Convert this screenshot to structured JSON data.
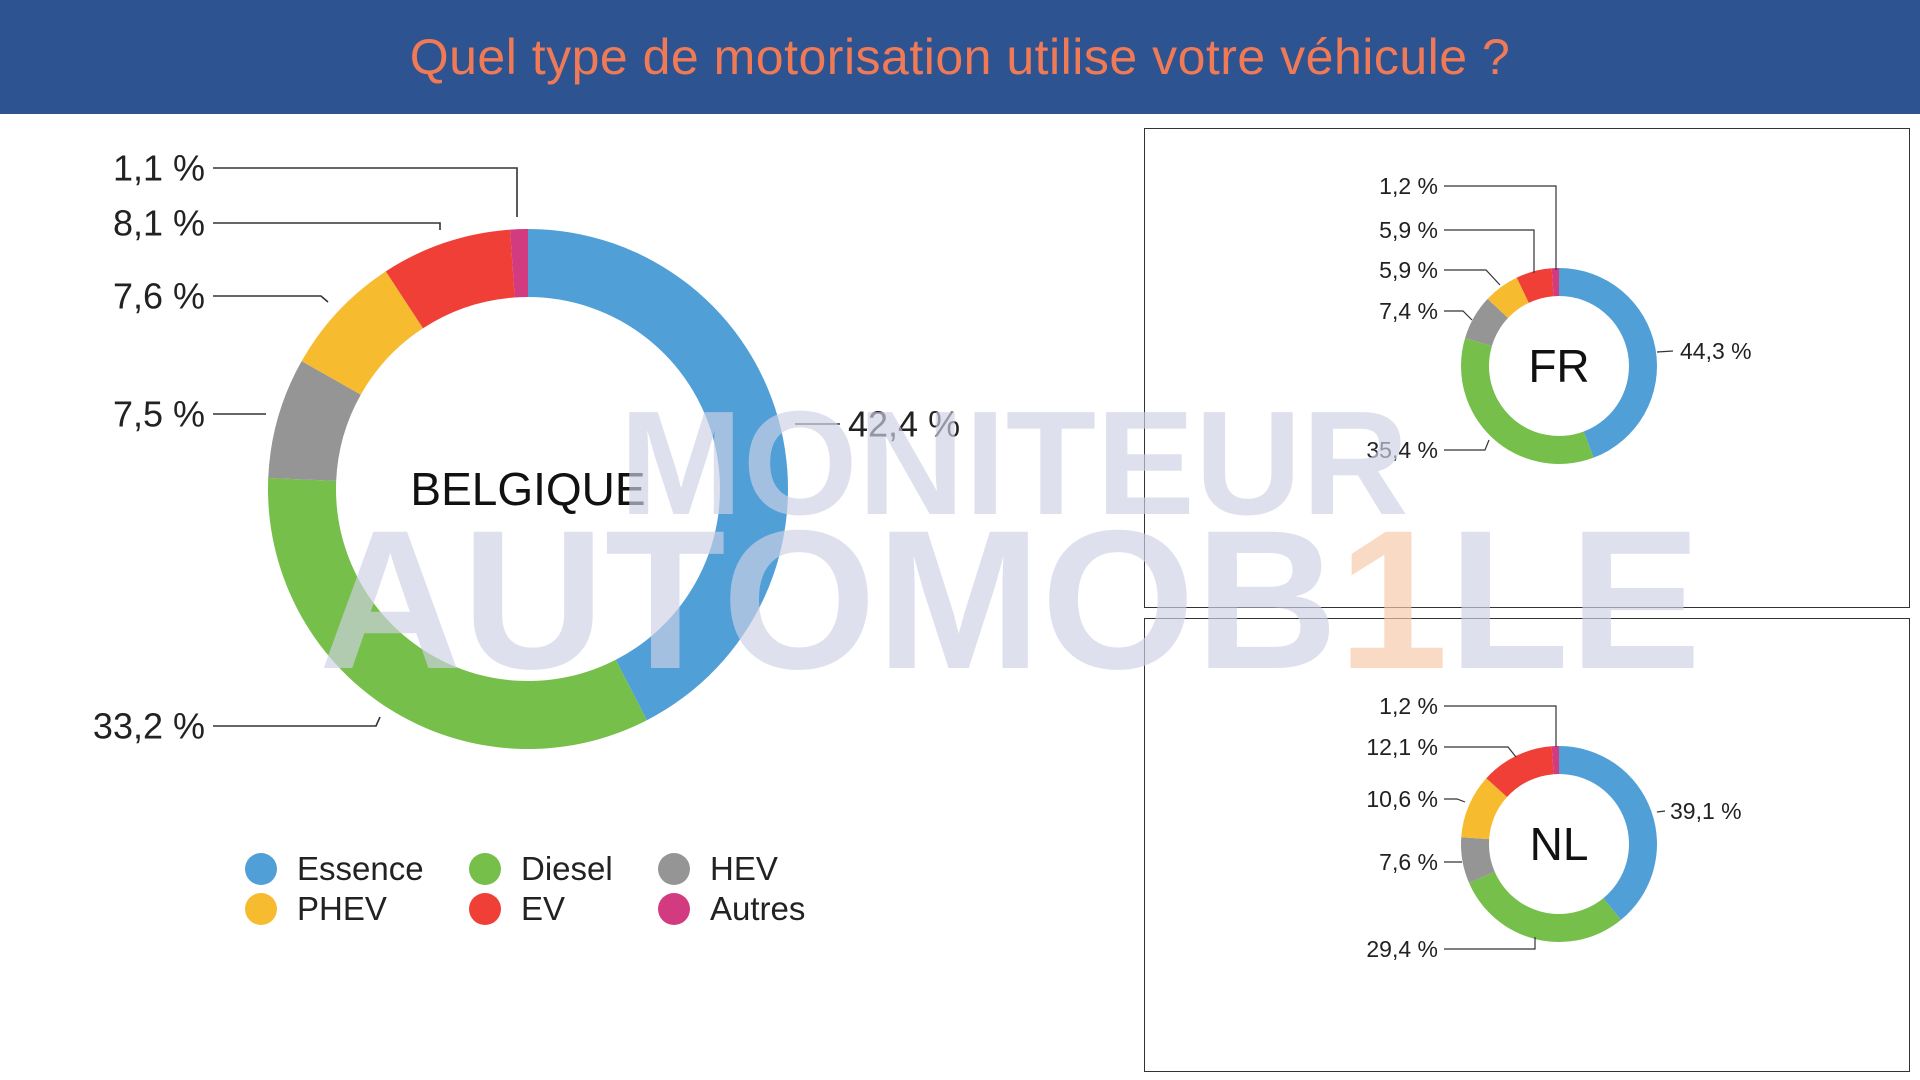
{
  "header": {
    "title": "Quel type de motorisation utilise votre véhicule ?",
    "background": "#2e5391",
    "title_color": "#f07a55"
  },
  "watermark": {
    "line1": "MONITEUR",
    "line2_part1": "AUTOMOB",
    "line2_highlight": "1",
    "line2_part2": "LE"
  },
  "colors": {
    "Essence": "#509fd7",
    "Diesel": "#76bf4a",
    "HEV": "#959595",
    "PHEV": "#f7bb30",
    "EV": "#ef3f36",
    "Autres": "#d33b80"
  },
  "legend": [
    {
      "label": "Essence",
      "color": "#509fd7"
    },
    {
      "label": "Diesel",
      "color": "#76bf4a"
    },
    {
      "label": "HEV",
      "color": "#959595"
    },
    {
      "label": "PHEV",
      "color": "#f7bb30"
    },
    {
      "label": "EV",
      "color": "#ef3f36"
    },
    {
      "label": "Autres",
      "color": "#d33b80"
    }
  ],
  "chart_data": [
    {
      "type": "pie",
      "title": "BELGIQUE",
      "categories": [
        "Essence",
        "Diesel",
        "HEV",
        "PHEV",
        "EV",
        "Autres"
      ],
      "values": [
        42.4,
        33.2,
        7.5,
        7.6,
        8.1,
        1.1
      ],
      "labels": [
        "42,4 %",
        "33,2 %",
        "7,5 %",
        "7,6 %",
        "8,1 %",
        "1,1 %"
      ]
    },
    {
      "type": "pie",
      "title": "FR",
      "categories": [
        "Essence",
        "Diesel",
        "HEV",
        "PHEV",
        "EV",
        "Autres"
      ],
      "values": [
        44.3,
        35.4,
        7.4,
        5.9,
        5.9,
        1.2
      ],
      "labels": [
        "44,3 %",
        "35,4 %",
        "7,4 %",
        "5,9 %",
        "5,9 %",
        "1,2 %"
      ]
    },
    {
      "type": "pie",
      "title": "NL",
      "categories": [
        "Essence",
        "Diesel",
        "HEV",
        "PHEV",
        "EV",
        "Autres"
      ],
      "values": [
        39.1,
        29.4,
        7.6,
        10.6,
        12.1,
        1.2
      ],
      "labels": [
        "39,1 %",
        "29,4 %",
        "7,6 %",
        "10,6 %",
        "12,1 %",
        "1,2 %"
      ]
    }
  ]
}
